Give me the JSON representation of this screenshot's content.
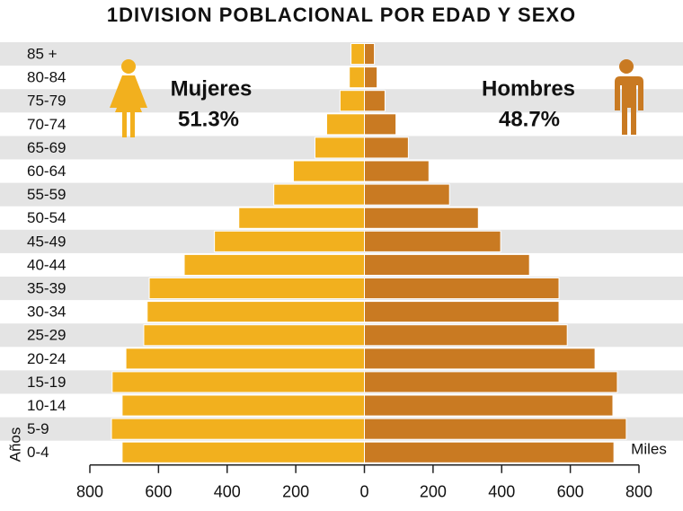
{
  "chart_data": {
    "type": "pyramid",
    "title": "1DIVISION POBLACIONAL POR EDAD Y SEXO",
    "y_label": "Años",
    "unit_label": "Miles",
    "categories": [
      "85 +",
      "80-84",
      "75-79",
      "70-74",
      "65-69",
      "60-64",
      "55-59",
      "50-54",
      "45-49",
      "40-44",
      "35-39",
      "30-34",
      "25-29",
      "20-24",
      "15-19",
      "10-14",
      "5-9",
      "0-4"
    ],
    "series": [
      {
        "name": "Mujeres",
        "side": "left",
        "color": "#f2b01e",
        "percent_label": "51.3%",
        "values": [
          39,
          44,
          71,
          110,
          144,
          207,
          264,
          366,
          437,
          525,
          627,
          633,
          643,
          695,
          735,
          706,
          737,
          706
        ]
      },
      {
        "name": "Hombres",
        "side": "right",
        "color": "#c97a22",
        "percent_label": "48.7%",
        "values": [
          29,
          37,
          60,
          92,
          128,
          188,
          248,
          332,
          397,
          481,
          567,
          567,
          591,
          672,
          737,
          724,
          763,
          727
        ]
      }
    ],
    "xlim": [
      -800,
      800
    ],
    "xticks": [
      {
        "value": -800,
        "label": "800"
      },
      {
        "value": -600,
        "label": "600"
      },
      {
        "value": -400,
        "label": "400"
      },
      {
        "value": -200,
        "label": "200"
      },
      0,
      200,
      400,
      600,
      800
    ],
    "stripes": true,
    "stripe_color": "#e4e4e4"
  }
}
